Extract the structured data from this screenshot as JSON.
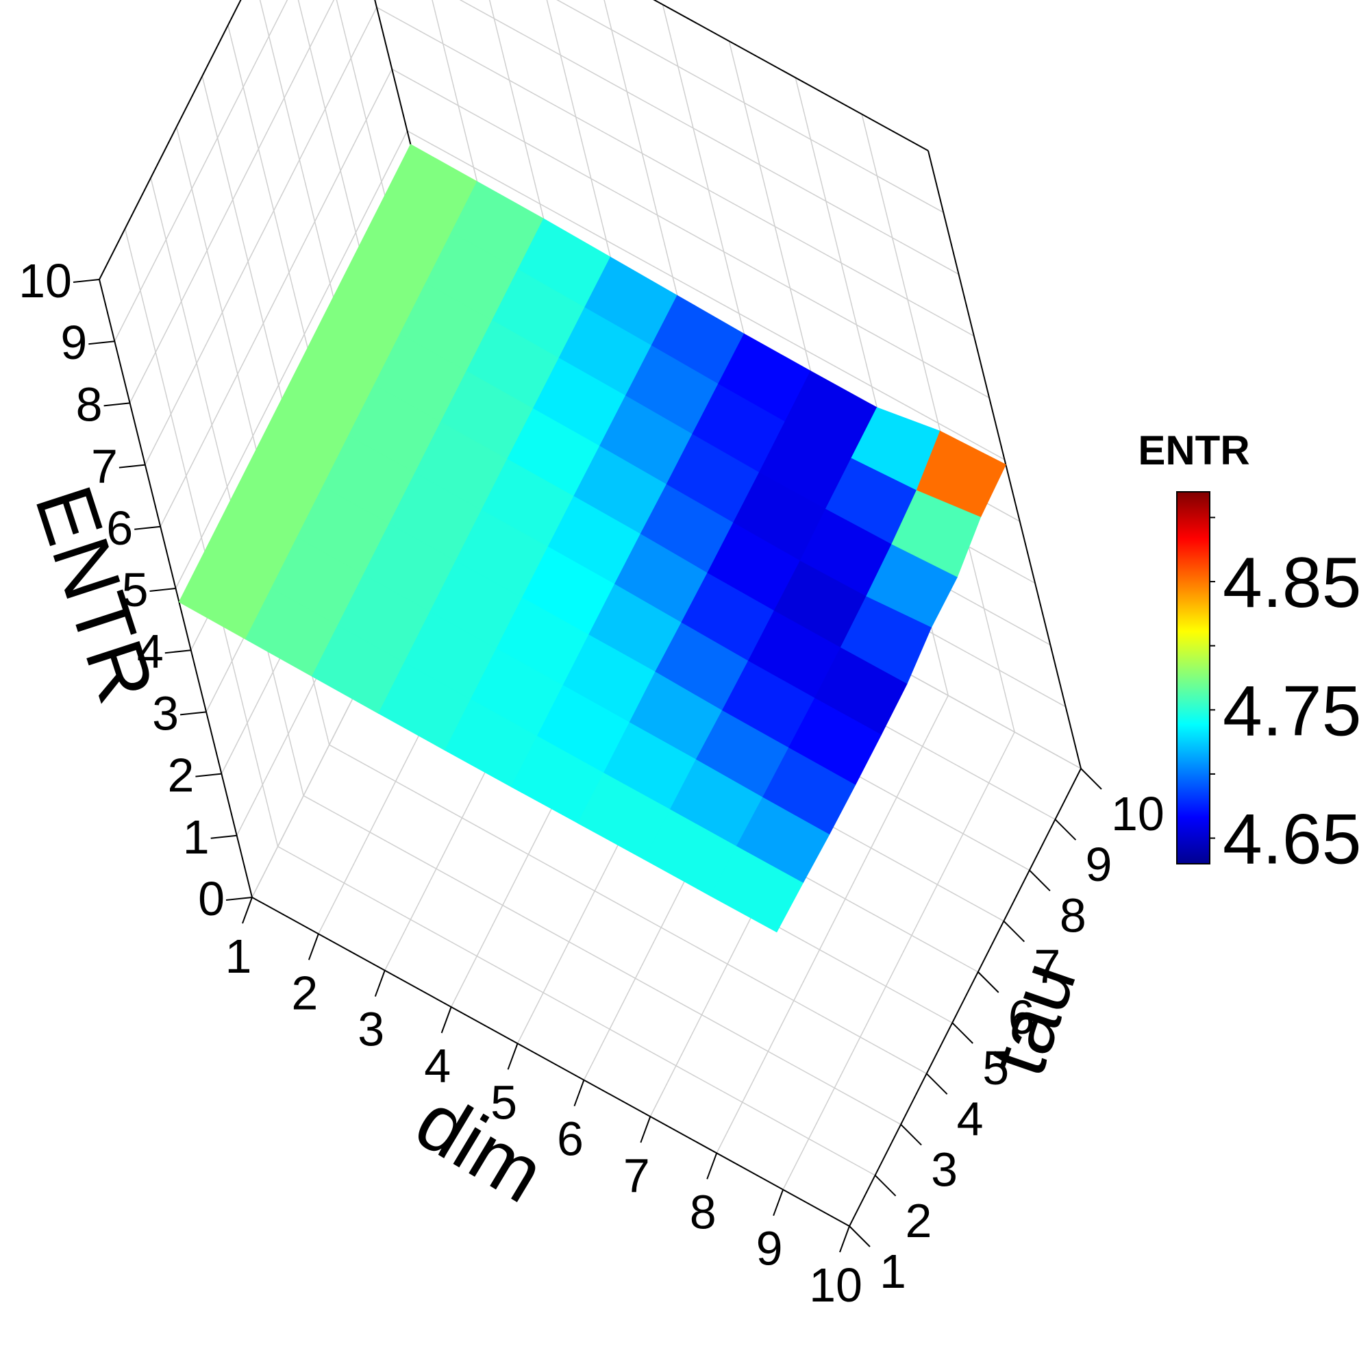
{
  "chart_data": {
    "type": "surface3d",
    "x_axis": {
      "label": "dim",
      "ticks": [
        "1",
        "2",
        "3",
        "4",
        "5",
        "6",
        "7",
        "8",
        "9",
        "10"
      ]
    },
    "y_axis": {
      "label": "tau",
      "ticks": [
        "1",
        "2",
        "3",
        "4",
        "5",
        "6",
        "7",
        "8",
        "9",
        "10"
      ]
    },
    "z_axis": {
      "label": "ENTR",
      "ticks": [
        "0",
        "1",
        "2",
        "3",
        "4",
        "5",
        "6",
        "7",
        "8",
        "9",
        "10"
      ],
      "range": [
        0,
        10
      ]
    },
    "colorbar": {
      "title": "ENTR",
      "labels": [
        "4.65",
        "4.75",
        "4.85"
      ],
      "range": [
        4.63,
        4.92
      ],
      "colormap": [
        "#00008f",
        "#0000ff",
        "#0080ff",
        "#00ffff",
        "#80ff80",
        "#ffff00",
        "#ff8000",
        "#ff0000",
        "#800000"
      ]
    },
    "colorscale_values": [
      4.65,
      4.75,
      4.85
    ],
    "note_rows_are_tau_1_to_10_cols_are_dim_1_to_10": "",
    "z": [
      [
        4.78,
        4.77,
        4.76,
        4.75,
        4.745,
        4.745,
        4.75,
        4.755,
        4.755,
        4.76
      ],
      [
        4.78,
        4.77,
        4.76,
        4.75,
        4.745,
        4.74,
        4.735,
        4.735,
        4.73,
        4.73
      ],
      [
        4.78,
        4.77,
        4.76,
        4.75,
        4.745,
        4.74,
        4.73,
        4.72,
        4.7,
        4.69
      ],
      [
        4.78,
        4.77,
        4.76,
        4.75,
        4.745,
        4.735,
        4.725,
        4.69,
        4.68,
        4.67
      ],
      [
        4.78,
        4.77,
        4.76,
        4.75,
        4.745,
        4.73,
        4.7,
        4.67,
        4.66,
        4.66
      ],
      [
        4.78,
        4.77,
        4.76,
        4.75,
        4.74,
        4.72,
        4.68,
        4.66,
        4.655,
        4.66
      ],
      [
        4.78,
        4.77,
        4.76,
        4.745,
        4.73,
        4.7,
        4.67,
        4.645,
        4.66,
        4.75
      ],
      [
        4.78,
        4.77,
        4.76,
        4.74,
        4.72,
        4.69,
        4.66,
        4.66,
        4.68,
        4.74
      ],
      [
        4.78,
        4.77,
        4.76,
        4.735,
        4.71,
        4.68,
        4.66,
        4.66,
        4.73,
        4.89
      ],
      [
        4.78,
        4.77,
        4.76,
        4.73,
        4.7,
        4.67,
        4.66,
        4.66,
        4.87,
        4.92
      ]
    ]
  }
}
